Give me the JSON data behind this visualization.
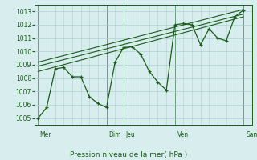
{
  "title": "",
  "xlabel": "Pression niveau de la mer( hPa )",
  "ylabel": "",
  "bg_color": "#d8eeee",
  "grid_color": "#b0d0d0",
  "line_color": "#1a5c1a",
  "ylim": [
    1004.5,
    1013.5
  ],
  "day_labels": [
    "Mer",
    "Dim",
    "Jeu",
    "Ven",
    "Sam"
  ],
  "day_positions": [
    0,
    4,
    5,
    8,
    12
  ],
  "yticks": [
    1005,
    1006,
    1007,
    1008,
    1009,
    1010,
    1011,
    1012,
    1013
  ],
  "main_series": [
    [
      0,
      1005.0
    ],
    [
      0.5,
      1005.8
    ],
    [
      1.0,
      1008.7
    ],
    [
      1.5,
      1008.8
    ],
    [
      2.0,
      1008.1
    ],
    [
      2.5,
      1008.1
    ],
    [
      3.0,
      1006.6
    ],
    [
      3.5,
      1006.1
    ],
    [
      4.0,
      1005.8
    ],
    [
      4.5,
      1009.2
    ],
    [
      5.0,
      1010.3
    ],
    [
      5.5,
      1010.35
    ],
    [
      6.0,
      1009.8
    ],
    [
      6.5,
      1008.5
    ],
    [
      7.0,
      1007.7
    ],
    [
      7.5,
      1007.1
    ],
    [
      8.0,
      1012.0
    ],
    [
      8.5,
      1012.1
    ],
    [
      9.0,
      1012.0
    ],
    [
      9.5,
      1010.5
    ],
    [
      10.0,
      1011.7
    ],
    [
      10.5,
      1011.0
    ],
    [
      11.0,
      1010.8
    ],
    [
      11.5,
      1012.6
    ],
    [
      12.0,
      1013.1
    ]
  ],
  "trend_line1": [
    [
      0,
      1008.5
    ],
    [
      12,
      1012.6
    ]
  ],
  "trend_line2": [
    [
      0,
      1008.9
    ],
    [
      12,
      1012.8
    ]
  ],
  "trend_line3": [
    [
      0,
      1009.2
    ],
    [
      12,
      1013.15
    ]
  ],
  "xlim": [
    -0.2,
    12.4
  ],
  "figsize": [
    3.2,
    2.0
  ],
  "dpi": 100
}
